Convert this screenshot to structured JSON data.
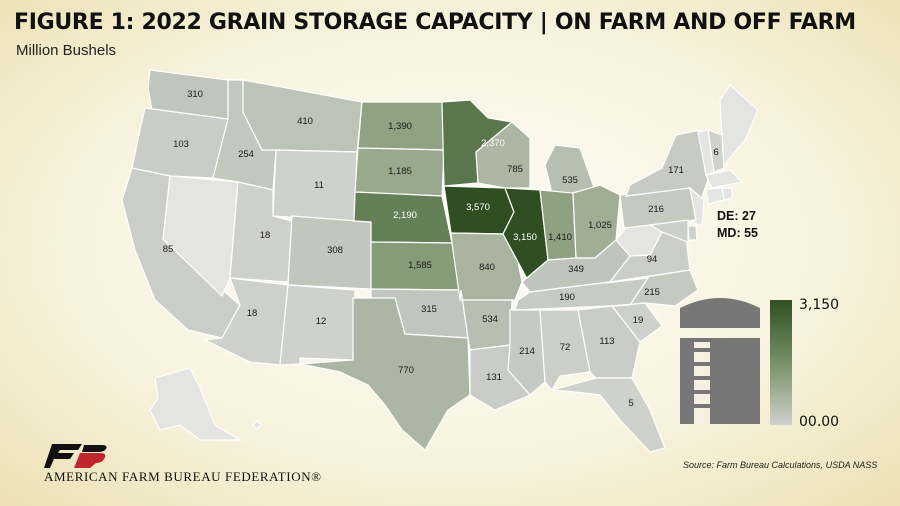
{
  "title": "FIGURE 1: 2022 GRAIN STORAGE CAPACITY | ON FARM AND OFF FARM",
  "subtitle": "Million Bushels",
  "notes": [
    "DE: 27",
    "MD: 55"
  ],
  "legend": {
    "max_label": "3,150",
    "min_label": "00.00"
  },
  "colors": {
    "max": "#2f4f22",
    "mid": "#7f9670",
    "min": "#cfd1cd",
    "no_data": "#e4e4e2"
  },
  "source": "Source: Farm Bureau Calculations, USDA NASS",
  "org_name": "AMERICAN FARM BUREAU FEDERATION®",
  "icons": [
    "grain-silo-icon",
    "farm-bureau-logo"
  ],
  "states": [
    {
      "id": "WA",
      "label": "310",
      "value": 310
    },
    {
      "id": "OR",
      "label": "103",
      "value": 103
    },
    {
      "id": "CA",
      "label": "85",
      "value": 85
    },
    {
      "id": "NV",
      "label": "",
      "value": null
    },
    {
      "id": "ID",
      "label": "254",
      "value": 254
    },
    {
      "id": "MT",
      "label": "410",
      "value": 410
    },
    {
      "id": "WY",
      "label": "11",
      "value": 11
    },
    {
      "id": "UT",
      "label": "18",
      "value": 18
    },
    {
      "id": "AZ",
      "label": "18",
      "value": 18
    },
    {
      "id": "CO",
      "label": "308",
      "value": 308
    },
    {
      "id": "NM",
      "label": "12",
      "value": 12
    },
    {
      "id": "ND",
      "label": "1,390",
      "value": 1390
    },
    {
      "id": "SD",
      "label": "1,185",
      "value": 1185
    },
    {
      "id": "NE",
      "label": "2,190",
      "value": 2190
    },
    {
      "id": "KS",
      "label": "1,585",
      "value": 1585
    },
    {
      "id": "OK",
      "label": "315",
      "value": 315
    },
    {
      "id": "TX",
      "label": "770",
      "value": 770
    },
    {
      "id": "MN",
      "label": "2,370",
      "value": 2370
    },
    {
      "id": "IA",
      "label": "3,570",
      "value": 3570
    },
    {
      "id": "MO",
      "label": "840",
      "value": 840
    },
    {
      "id": "AR",
      "label": "534",
      "value": 534
    },
    {
      "id": "LA",
      "label": "131",
      "value": 131
    },
    {
      "id": "WI",
      "label": "785",
      "value": 785
    },
    {
      "id": "IL",
      "label": "3,150",
      "value": 3150
    },
    {
      "id": "MI",
      "label": "535",
      "value": 535
    },
    {
      "id": "IN",
      "label": "1,410",
      "value": 1410
    },
    {
      "id": "OH",
      "label": "1,025",
      "value": 1025
    },
    {
      "id": "KY",
      "label": "349",
      "value": 349
    },
    {
      "id": "TN",
      "label": "190",
      "value": 190
    },
    {
      "id": "MS",
      "label": "214",
      "value": 214
    },
    {
      "id": "AL",
      "label": "72",
      "value": 72
    },
    {
      "id": "GA",
      "label": "113",
      "value": 113
    },
    {
      "id": "FL",
      "label": "5",
      "value": 5
    },
    {
      "id": "SC",
      "label": "19",
      "value": 19
    },
    {
      "id": "NC",
      "label": "215",
      "value": 215
    },
    {
      "id": "VA",
      "label": "94",
      "value": 94
    },
    {
      "id": "WV",
      "label": "",
      "value": null
    },
    {
      "id": "PA",
      "label": "216",
      "value": 216
    },
    {
      "id": "NY",
      "label": "171",
      "value": 171
    },
    {
      "id": "NH",
      "label": "6",
      "value": 6
    },
    {
      "id": "VT",
      "label": "",
      "value": null
    },
    {
      "id": "ME",
      "label": "",
      "value": null
    },
    {
      "id": "MA",
      "label": "",
      "value": null
    },
    {
      "id": "CT",
      "label": "",
      "value": null
    },
    {
      "id": "RI",
      "label": "",
      "value": null
    },
    {
      "id": "NJ",
      "label": "",
      "value": null
    },
    {
      "id": "DE",
      "label": "",
      "value": 27
    },
    {
      "id": "MD",
      "label": "",
      "value": 55
    },
    {
      "id": "AK",
      "label": "",
      "value": null
    },
    {
      "id": "HI",
      "label": "",
      "value": null
    }
  ]
}
